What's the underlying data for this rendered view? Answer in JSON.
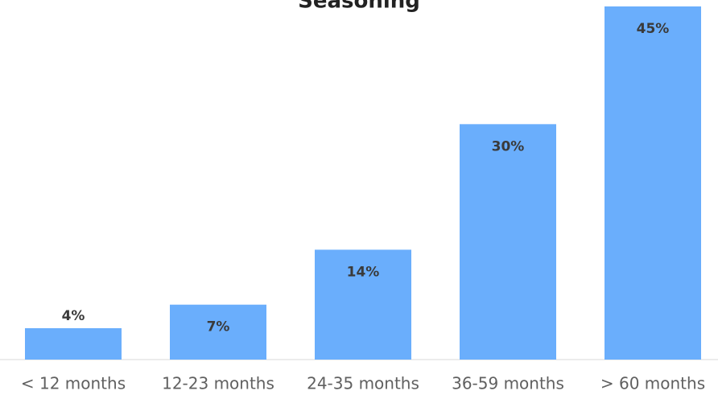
{
  "chart_data": {
    "type": "bar",
    "title": "Seasoning",
    "categories": [
      "< 12 months",
      "12-23 months",
      "24-35 months",
      "36-59 months",
      "> 60 months"
    ],
    "values": [
      4,
      7,
      14,
      30,
      45
    ],
    "value_labels": [
      "4%",
      "7%",
      "14%",
      "30%",
      "45%"
    ],
    "color": "#6aaefc"
  }
}
